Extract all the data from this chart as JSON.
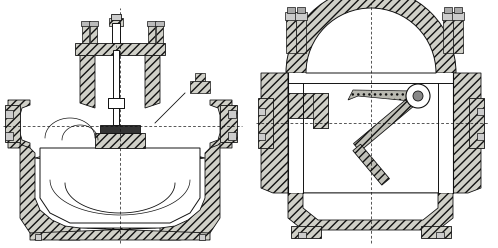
{
  "fig_width": 4.98,
  "fig_height": 2.48,
  "dpi": 100,
  "lc": "#111111",
  "hc": "#888888",
  "bg": "#ffffff"
}
